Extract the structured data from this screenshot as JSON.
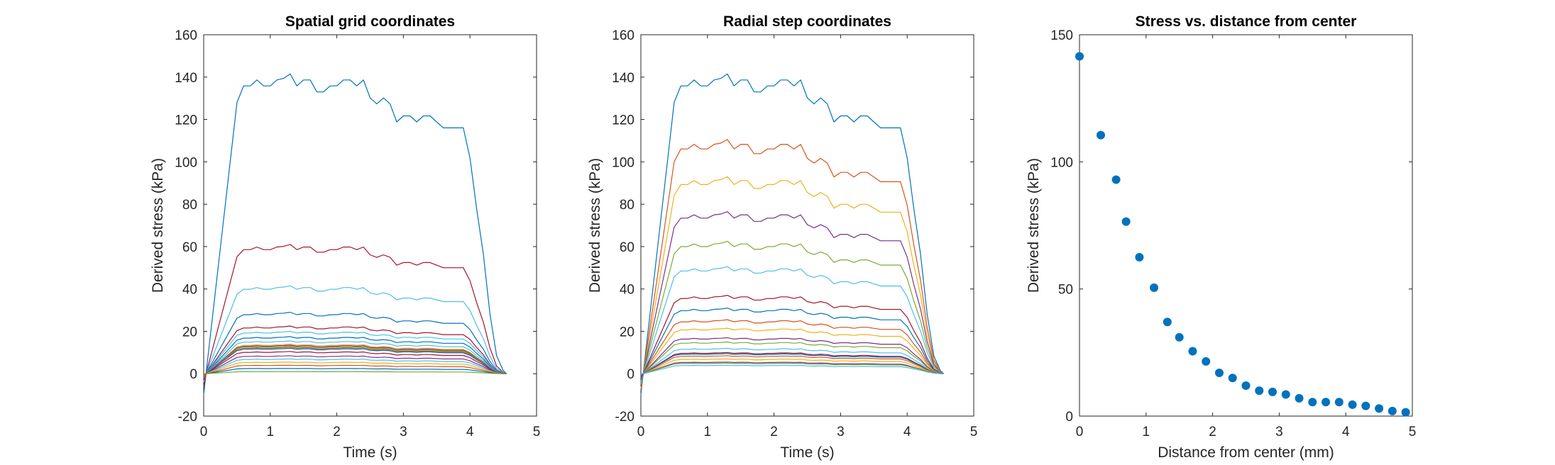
{
  "chart_data": [
    {
      "type": "line",
      "title": "Spatial grid coordinates",
      "xlabel": "Time (s)",
      "ylabel": "Derived stress (kPa)",
      "xlim": [
        0,
        5
      ],
      "ylim": [
        -20,
        160
      ],
      "xticks": [
        0,
        1,
        2,
        3,
        4,
        5
      ],
      "yticks": [
        -20,
        0,
        20,
        40,
        60,
        80,
        100,
        120,
        140,
        160
      ],
      "x": [
        0,
        0.05,
        0.5,
        0.6,
        0.7,
        0.8,
        0.9,
        1.0,
        1.1,
        1.2,
        1.3,
        1.4,
        1.5,
        1.6,
        1.7,
        1.8,
        1.9,
        2.0,
        2.1,
        2.2,
        2.3,
        2.4,
        2.5,
        2.6,
        2.7,
        2.8,
        2.9,
        3.0,
        3.1,
        3.2,
        3.3,
        3.4,
        3.5,
        3.6,
        3.7,
        3.8,
        3.9,
        4.0,
        4.1,
        4.2,
        4.3,
        4.4,
        4.5,
        4.55
      ],
      "profile": [
        0,
        0.03,
        0.905,
        0.96,
        0.96,
        0.98,
        0.96,
        0.96,
        0.98,
        0.985,
        1.0,
        0.96,
        0.98,
        0.98,
        0.94,
        0.94,
        0.96,
        0.96,
        0.98,
        0.98,
        0.96,
        0.98,
        0.92,
        0.9,
        0.92,
        0.9,
        0.84,
        0.86,
        0.86,
        0.84,
        0.86,
        0.86,
        0.84,
        0.82,
        0.82,
        0.82,
        0.82,
        0.72,
        0.55,
        0.4,
        0.2,
        0.06,
        0.01,
        0
      ],
      "series": [
        {
          "peak": 141.5,
          "dip": -10,
          "color": "#0072BD"
        },
        {
          "peak": 61,
          "dip": -6,
          "color": "#A2142F"
        },
        {
          "peak": 41.5,
          "dip": -4,
          "color": "#4DBEEE"
        },
        {
          "peak": 29,
          "dip": -3,
          "color": "#0072BD"
        },
        {
          "peak": 22.5,
          "dip": -3,
          "color": "#A2142F"
        },
        {
          "peak": 20,
          "dip": -2,
          "color": "#4DBEEE"
        },
        {
          "peak": 17.5,
          "dip": -2,
          "color": "#0072BD"
        },
        {
          "peak": 15.5,
          "dip": -2,
          "color": "#4DBEEE"
        },
        {
          "peak": 14,
          "dip": -2,
          "color": "#EDB120"
        },
        {
          "peak": 13.5,
          "dip": -2,
          "color": "#7E2F8E"
        },
        {
          "peak": 13,
          "dip": -2,
          "color": "#77AC30"
        },
        {
          "peak": 12.5,
          "dip": -2,
          "color": "#D95319"
        },
        {
          "peak": 12,
          "dip": -1,
          "color": "#0072BD"
        },
        {
          "peak": 10.5,
          "dip": -1,
          "color": "#A2142F"
        },
        {
          "peak": 8.5,
          "dip": -1,
          "color": "#7E2F8E"
        },
        {
          "peak": 7,
          "dip": -1,
          "color": "#4DBEEE"
        },
        {
          "peak": 5.5,
          "dip": -1,
          "color": "#EDB120"
        },
        {
          "peak": 4,
          "dip": -1,
          "color": "#D95319"
        },
        {
          "peak": 2.5,
          "dip": 0,
          "color": "#0072BD"
        },
        {
          "peak": 1,
          "dip": 0,
          "color": "#77AC30"
        }
      ]
    },
    {
      "type": "line",
      "title": "Radial step coordinates",
      "xlabel": "Time (s)",
      "ylabel": "Derived stress (kPa)",
      "xlim": [
        0,
        5
      ],
      "ylim": [
        -20,
        160
      ],
      "xticks": [
        0,
        1,
        2,
        3,
        4,
        5
      ],
      "yticks": [
        -20,
        0,
        20,
        40,
        60,
        80,
        100,
        120,
        140,
        160
      ],
      "x": [
        0,
        0.05,
        0.5,
        0.6,
        0.7,
        0.8,
        0.9,
        1.0,
        1.1,
        1.2,
        1.3,
        1.4,
        1.5,
        1.6,
        1.7,
        1.8,
        1.9,
        2.0,
        2.1,
        2.2,
        2.3,
        2.4,
        2.5,
        2.6,
        2.7,
        2.8,
        2.9,
        3.0,
        3.1,
        3.2,
        3.3,
        3.4,
        3.5,
        3.6,
        3.7,
        3.8,
        3.9,
        4.0,
        4.1,
        4.2,
        4.3,
        4.4,
        4.5,
        4.55
      ],
      "profile": [
        0,
        0.03,
        0.905,
        0.96,
        0.96,
        0.98,
        0.96,
        0.96,
        0.98,
        0.985,
        1.0,
        0.96,
        0.98,
        0.98,
        0.94,
        0.94,
        0.96,
        0.96,
        0.98,
        0.98,
        0.96,
        0.98,
        0.92,
        0.9,
        0.92,
        0.9,
        0.84,
        0.86,
        0.86,
        0.84,
        0.86,
        0.86,
        0.84,
        0.82,
        0.82,
        0.82,
        0.82,
        0.72,
        0.55,
        0.4,
        0.2,
        0.06,
        0.01,
        0
      ],
      "series": [
        {
          "peak": 141.5,
          "dip": -10,
          "color": "#0072BD"
        },
        {
          "peak": 110.5,
          "dip": -8,
          "color": "#D95319"
        },
        {
          "peak": 93,
          "dip": -7,
          "color": "#EDB120"
        },
        {
          "peak": 76.5,
          "dip": -6,
          "color": "#7E2F8E"
        },
        {
          "peak": 62.5,
          "dip": -5,
          "color": "#77AC30"
        },
        {
          "peak": 50.5,
          "dip": -4,
          "color": "#4DBEEE"
        },
        {
          "peak": 37,
          "dip": -3,
          "color": "#A2142F"
        },
        {
          "peak": 31,
          "dip": -3,
          "color": "#0072BD"
        },
        {
          "peak": 25.5,
          "dip": -2,
          "color": "#D95319"
        },
        {
          "peak": 21.5,
          "dip": -2,
          "color": "#EDB120"
        },
        {
          "peak": 17,
          "dip": -2,
          "color": "#7E2F8E"
        },
        {
          "peak": 15,
          "dip": -1,
          "color": "#77AC30"
        },
        {
          "peak": 12,
          "dip": -1,
          "color": "#4DBEEE"
        },
        {
          "peak": 10,
          "dip": -1,
          "color": "#A2142F"
        },
        {
          "peak": 9.5,
          "dip": -1,
          "color": "#0072BD"
        },
        {
          "peak": 8.5,
          "dip": -1,
          "color": "#D95319"
        },
        {
          "peak": 7,
          "dip": -1,
          "color": "#EDB120"
        },
        {
          "peak": 5.5,
          "dip": -1,
          "color": "#7E2F8E"
        },
        {
          "peak": 5,
          "dip": 0,
          "color": "#77AC30"
        },
        {
          "peak": 4,
          "dip": 0,
          "color": "#4DBEEE"
        }
      ]
    },
    {
      "type": "scatter",
      "title": "Stress vs. distance from center",
      "xlabel": "Distance from center (mm)",
      "ylabel": "Derived stress (kPa)",
      "xlim": [
        0,
        5
      ],
      "ylim": [
        0,
        150
      ],
      "xticks": [
        0,
        1,
        2,
        3,
        4,
        5
      ],
      "yticks": [
        0,
        50,
        100,
        150
      ],
      "color": "#0072BD",
      "points": [
        {
          "x": 0.0,
          "y": 141.5
        },
        {
          "x": 0.32,
          "y": 110.5
        },
        {
          "x": 0.55,
          "y": 93
        },
        {
          "x": 0.7,
          "y": 76.5
        },
        {
          "x": 0.9,
          "y": 62.5
        },
        {
          "x": 1.12,
          "y": 50.5
        },
        {
          "x": 1.32,
          "y": 37
        },
        {
          "x": 1.5,
          "y": 31
        },
        {
          "x": 1.7,
          "y": 25.5
        },
        {
          "x": 1.9,
          "y": 21.5
        },
        {
          "x": 2.1,
          "y": 17
        },
        {
          "x": 2.3,
          "y": 15
        },
        {
          "x": 2.5,
          "y": 12
        },
        {
          "x": 2.7,
          "y": 10
        },
        {
          "x": 2.9,
          "y": 9.5
        },
        {
          "x": 3.1,
          "y": 8.5
        },
        {
          "x": 3.3,
          "y": 7
        },
        {
          "x": 3.5,
          "y": 5.5
        },
        {
          "x": 3.7,
          "y": 5.5
        },
        {
          "x": 3.9,
          "y": 5.5
        },
        {
          "x": 4.1,
          "y": 4.5
        },
        {
          "x": 4.3,
          "y": 4
        },
        {
          "x": 4.5,
          "y": 3
        },
        {
          "x": 4.7,
          "y": 2
        },
        {
          "x": 4.9,
          "y": 1.5
        }
      ]
    }
  ]
}
